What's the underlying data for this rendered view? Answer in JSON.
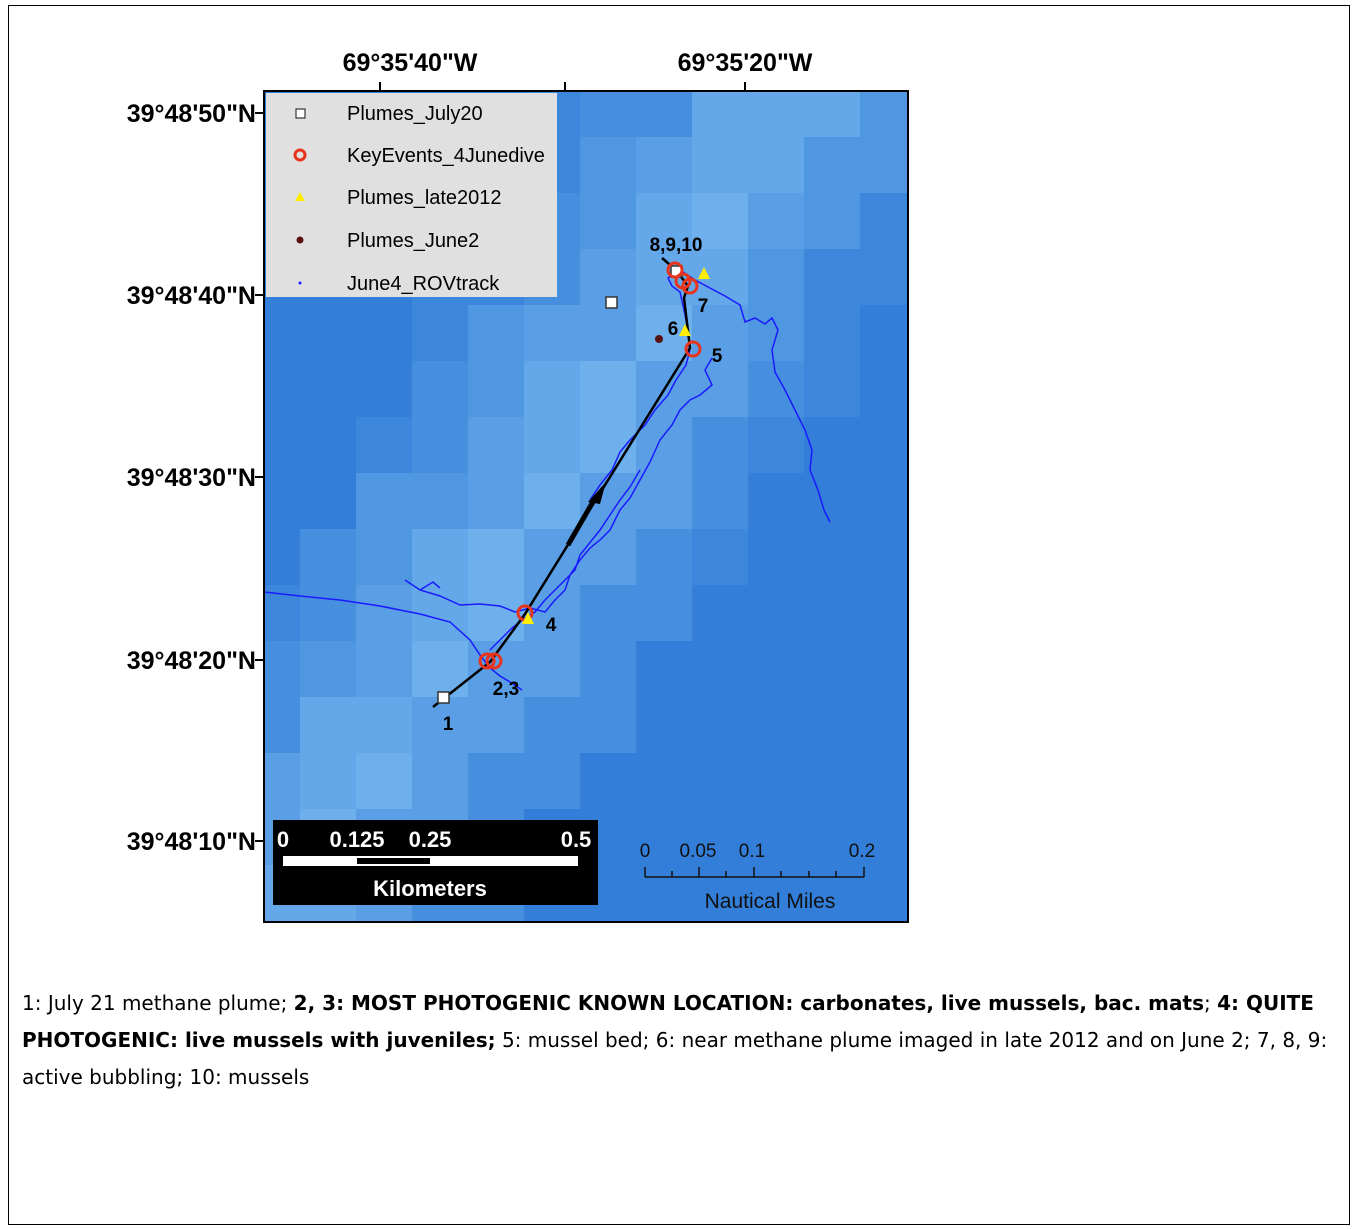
{
  "map": {
    "x_labels": [
      "69°35'40\"W",
      "69°35'20\"W"
    ],
    "y_labels": [
      "39°48'50\"N",
      "39°48'40\"N",
      "39°48'30\"N",
      "39°48'20\"N",
      "39°48'10\"N"
    ],
    "legend": [
      "Plumes_July20",
      "KeyEvents_4Junedive",
      "Plumes_late2012",
      "Plumes_June2",
      "June4_ROVtrack"
    ],
    "point_labels": [
      "8,9,10",
      "7",
      "6",
      "5",
      "4",
      "2,3",
      "1"
    ],
    "scale_km": {
      "ticks": [
        "0",
        "0.125",
        "0.25",
        "0.5"
      ],
      "unit": "Kilometers"
    },
    "scale_nm": {
      "ticks": [
        "0",
        "0.05",
        "0.1",
        "0.2"
      ],
      "unit": "Nautical Miles"
    }
  },
  "caption": [
    {
      "text": "1: July 21 methane plume;",
      "bold": false
    },
    {
      "text": "2, 3: MOST PHOTOGENIC KNOWN LOCATION: carbonates, live mussels, bac. mats",
      "bold": true
    },
    {
      "text": ";",
      "bold": false
    },
    {
      "text": "4: QUITE PHOTOGENIC: live mussels with juveniles;",
      "bold": true
    },
    {
      "text": "5: mussel bed; 6: near methane plume imaged in late 2012 and on June 2; 7, 8, 9:  active bubbling;  10: mussels",
      "bold": false
    }
  ]
}
